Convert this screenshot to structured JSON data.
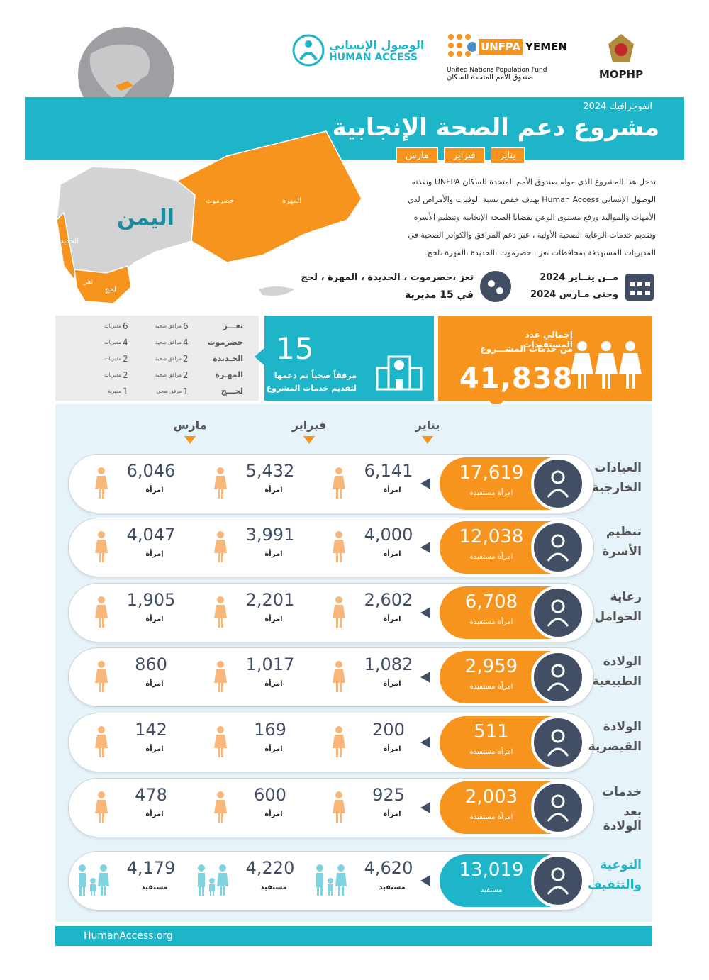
{
  "logos": {
    "mophp": "MOPHP",
    "unfpa": "UNFPA",
    "yemen": "YEMEN",
    "unfpa_en": "United Nations Population Fund",
    "unfpa_ar": "صندوق الأمم المتحدة للسكان",
    "human_access_ar": "الوصول الإنساني",
    "human_access_en": "HUMAN ACCESS"
  },
  "header": {
    "kicker": "انفوجرافيك 2024",
    "title": "مشروع دعم الصحة الإنجابية",
    "months": [
      "يناير",
      "فبراير",
      "مارس"
    ]
  },
  "map": {
    "country": "اليمن",
    "labels": [
      "حضرموت",
      "المهرة",
      "الحديدة",
      "تعز",
      "لحج"
    ]
  },
  "intro": {
    "lines": [
      "تدخل هذا المشروع  الذي موله صندوق الأمم المتحدة للسكان UNFPA ونفذته",
      "الوصول الإنساني Human Access بهدف خفض نسبة الوفيات والأمراض لدى",
      "الأمهات والمواليد ورفع مستوى الوعي بقضايا الصحة الإنجابية  وتنظيم الأسرة",
      "وتقديم خدمات الرعاية الصحية الأولية  ، عبر دعم المرافق والكوادر الصحية  في",
      "المديريات المستهدفة بمحافظات تعز ، حضرموت ،الحديدة ،المهرة ،لحج."
    ]
  },
  "location": {
    "areas": "تعز ،حضرموت ، الحديدة ، المهرة ، لحج",
    "districts": "في 15 مديرية"
  },
  "period": {
    "from": "مــن ينــاير 2024",
    "to": "وحتى مـارس 2024"
  },
  "facilities_table": {
    "rows": [
      [
        "تعـــز",
        6,
        "مرافق صحية",
        6,
        "مديريات"
      ],
      [
        "حضرموت",
        4,
        "مرافق صحية",
        4,
        "مديريات"
      ],
      [
        "الحـديدة",
        2,
        "مرافق صحية",
        2,
        "مديريات"
      ],
      [
        "المهـرة",
        2,
        "مرافق صحية",
        2,
        "مديريات"
      ],
      [
        "لحـــج",
        1,
        "مرفق صحي",
        1,
        "مديرية"
      ]
    ]
  },
  "facilities_card": {
    "number": 15,
    "line1": "مرفقاً صحياً تم دعمها",
    "line2": "لتقديم خدمات المشروع"
  },
  "total_card": {
    "line1": "إجمالي عدد المستفيدات",
    "line2": "من خدمات المشـــروع",
    "number": "41,838"
  },
  "services": [
    {
      "name": [
        "العيادات",
        "الخارجية"
      ],
      "total": "17,619",
      "total_label": "امرأة مستفيدة",
      "monthly": [
        {
          "value": "6,141",
          "unit": "امرأة"
        },
        {
          "value": "5,432",
          "unit": "امرأة"
        },
        {
          "value": "6,046",
          "unit": "امرأة"
        }
      ]
    },
    {
      "name": [
        "تنظيم",
        "الأسرة"
      ],
      "total": "12,038",
      "total_label": "امرأة مستفيدة",
      "monthly": [
        {
          "value": "4,000",
          "unit": "امرأة"
        },
        {
          "value": "3,991",
          "unit": "امرأة"
        },
        {
          "value": "4,047",
          "unit": "إمرأة"
        }
      ]
    },
    {
      "name": [
        "رعاية",
        "الحوامل"
      ],
      "total": "6,708",
      "total_label": "امرأة مستفيدة",
      "monthly": [
        {
          "value": "2,602",
          "unit": "امرأة"
        },
        {
          "value": "2,201",
          "unit": "امرأة"
        },
        {
          "value": "1,905",
          "unit": "امرأة"
        }
      ]
    },
    {
      "name": [
        "الولادة",
        "الطبيعية"
      ],
      "total": "2,959",
      "total_label": "امرأة مستفيدة",
      "monthly": [
        {
          "value": "1,082",
          "unit": "امرأة"
        },
        {
          "value": "1,017",
          "unit": "امرأة"
        },
        {
          "value": "860",
          "unit": "امرأة"
        }
      ]
    },
    {
      "name": [
        "الولادة",
        "القيصرية"
      ],
      "total": "511",
      "total_label": "امرأة مستفيدة",
      "monthly": [
        {
          "value": "200",
          "unit": "امرأة"
        },
        {
          "value": "169",
          "unit": "امرأة"
        },
        {
          "value": "142",
          "unit": "امرأة"
        }
      ]
    },
    {
      "name": [
        "خدمات",
        "بعد الولادة"
      ],
      "total": "2,003",
      "total_label": "امرأة مستفيدة",
      "monthly": [
        {
          "value": "925",
          "unit": "امرأة"
        },
        {
          "value": "600",
          "unit": "امرأة"
        },
        {
          "value": "478",
          "unit": "امرأة"
        }
      ]
    },
    {
      "name": [
        "التوعية",
        "والتثقيف"
      ],
      "total": "13,019",
      "total_label": "مستفيد",
      "monthly": [
        {
          "value": "4,620",
          "unit": "مستفيد"
        },
        {
          "value": "4,220",
          "unit": "مستفيد"
        },
        {
          "value": "4,179",
          "unit": "مستفيد"
        }
      ]
    }
  ],
  "footer": {
    "url": "HumanAccess.org"
  }
}
